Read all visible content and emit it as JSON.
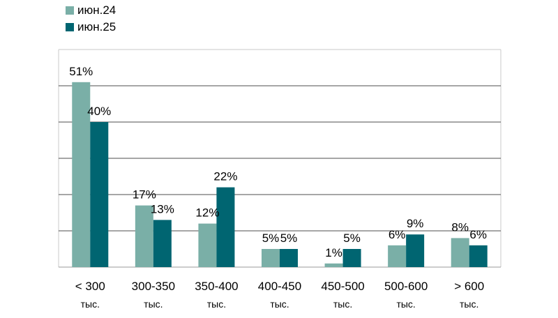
{
  "chart_data": {
    "type": "bar",
    "categories": [
      {
        "line1": "< 300",
        "line2": "тыс."
      },
      {
        "line1": "300-350",
        "line2": "тыс."
      },
      {
        "line1": "350-400",
        "line2": "тыс."
      },
      {
        "line1": "400-450",
        "line2": "тыс."
      },
      {
        "line1": "450-500",
        "line2": "тыс."
      },
      {
        "line1": "500-600",
        "line2": "тыс."
      },
      {
        "line1": "> 600",
        "line2": "тыс."
      }
    ],
    "series": [
      {
        "name": "июн.24",
        "color": "#7aafa7",
        "values": [
          51,
          17,
          12,
          5,
          1,
          6,
          8
        ],
        "labels": [
          "51%",
          "17%",
          "12%",
          "5%",
          "1%",
          "6%",
          "8%"
        ]
      },
      {
        "name": "июн.25",
        "color": "#006571",
        "values": [
          40,
          13,
          22,
          5,
          5,
          9,
          6
        ],
        "labels": [
          "40%",
          "13%",
          "22%",
          "5%",
          "5%",
          "9%",
          "6%"
        ]
      }
    ],
    "ylim": [
      0,
      60
    ],
    "grid": true,
    "legend_position": "top-left",
    "title": "",
    "xlabel": "",
    "ylabel": ""
  }
}
